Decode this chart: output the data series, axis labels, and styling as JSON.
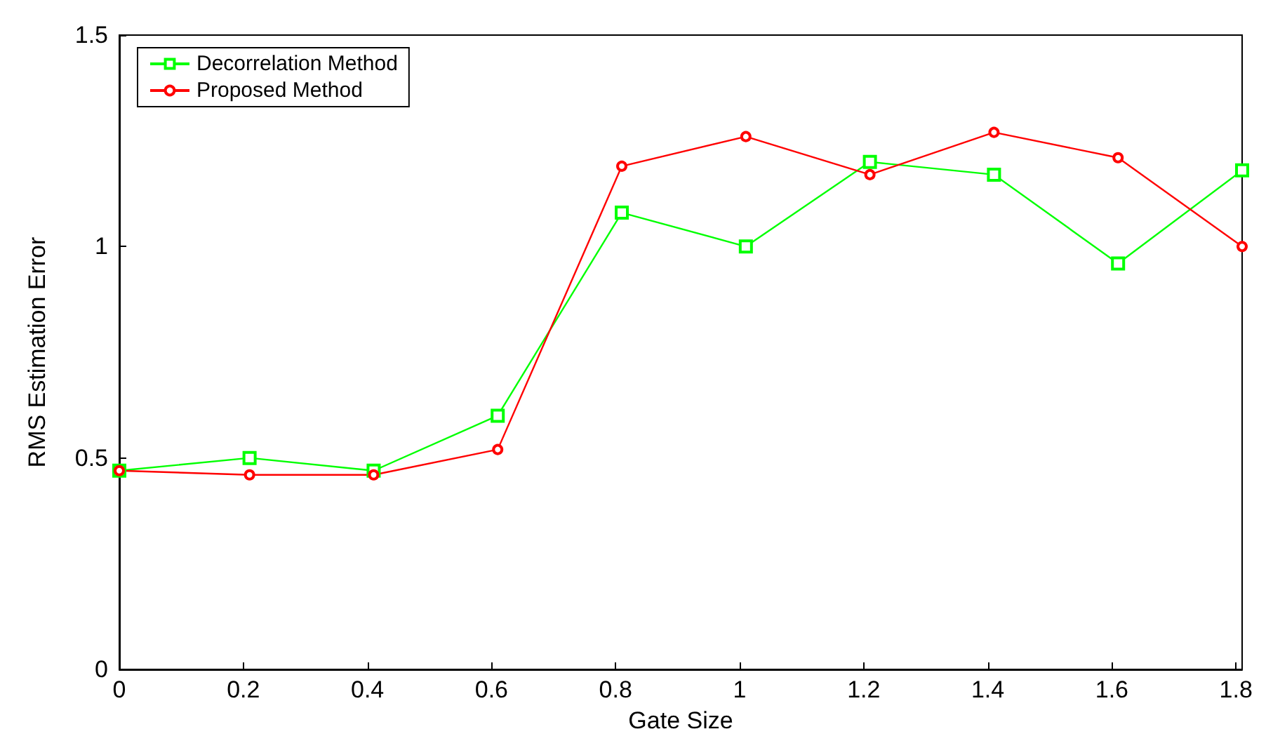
{
  "chart_data": {
    "type": "line",
    "xlabel": "Gate Size",
    "ylabel": "RMS Estimation Error",
    "x": [
      0,
      0.21,
      0.41,
      0.61,
      0.81,
      1.01,
      1.21,
      1.41,
      1.61,
      1.81
    ],
    "series": [
      {
        "name": "Decorrelation Method",
        "color": "#00ff00",
        "marker": "square",
        "values": [
          0.47,
          0.5,
          0.47,
          0.6,
          1.08,
          1.0,
          1.2,
          1.17,
          0.96,
          1.18
        ]
      },
      {
        "name": "Proposed Method",
        "color": "#ff0000",
        "marker": "circle",
        "values": [
          0.47,
          0.46,
          0.46,
          0.52,
          1.19,
          1.26,
          1.17,
          1.27,
          1.21,
          1.0
        ]
      }
    ],
    "xlim": [
      0,
      1.81
    ],
    "xticks": [
      0,
      0.2,
      0.4,
      0.6,
      0.8,
      1,
      1.2,
      1.4,
      1.6,
      1.8
    ],
    "ylim": [
      0,
      1.5
    ],
    "yticks": [
      0,
      0.5,
      1,
      1.5
    ],
    "grid": false,
    "legend": "top left",
    "line_style": "solid"
  }
}
